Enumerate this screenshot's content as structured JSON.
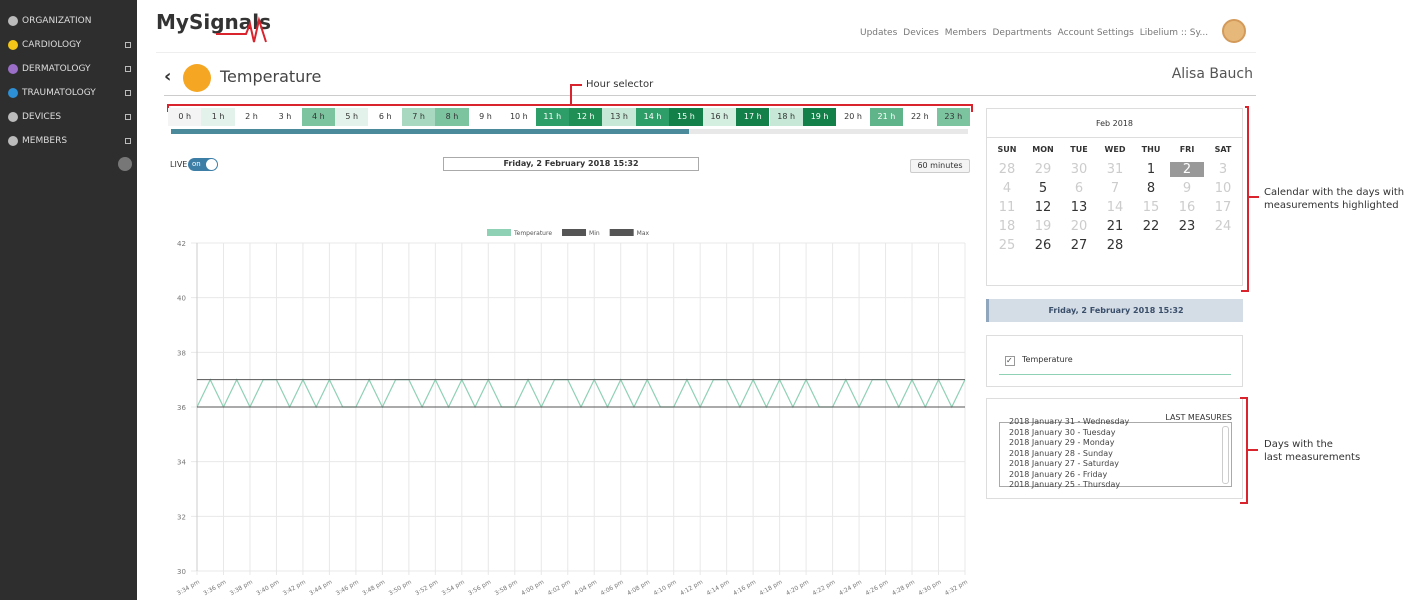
{
  "sidebar": {
    "items": [
      {
        "label": "ORGANIZATION",
        "icon": "#bbbbbb"
      },
      {
        "label": "CARDIOLOGY",
        "icon": "#f5c518"
      },
      {
        "label": "DERMATOLOGY",
        "icon": "#9b6fc8"
      },
      {
        "label": "TRAUMATOLOGY",
        "icon": "#2d8fd5"
      },
      {
        "label": "DEVICES",
        "icon": "#bbbbbb"
      },
      {
        "label": "MEMBERS",
        "icon": "#bbbbbb"
      }
    ]
  },
  "header": {
    "logo": "MySignals",
    "nav": [
      "Updates",
      "Devices",
      "Members",
      "Departments",
      "Account Settings",
      "Libelium :: Sy..."
    ]
  },
  "page": {
    "title": "Temperature",
    "user": "Alisa Bauch",
    "live": "LIVE",
    "toggle": "on",
    "date": "Friday, 2 February 2018 15:32",
    "range": "60 minutes"
  },
  "hours": [
    {
      "label": "0 h",
      "color": "#f4f4f4"
    },
    {
      "label": "1 h",
      "color": "#e3f2ea"
    },
    {
      "label": "2 h",
      "color": "#ffffff"
    },
    {
      "label": "3 h",
      "color": "#ffffff"
    },
    {
      "label": "4 h",
      "color": "#7cc4a0"
    },
    {
      "label": "5 h",
      "color": "#e3f2ea"
    },
    {
      "label": "6 h",
      "color": "#ffffff"
    },
    {
      "label": "7 h",
      "color": "#a8d8bf"
    },
    {
      "label": "8 h",
      "color": "#7cc4a0"
    },
    {
      "label": "9 h",
      "color": "#ffffff"
    },
    {
      "label": "10 h",
      "color": "#ffffff"
    },
    {
      "label": "11 h",
      "color": "#2e9e68"
    },
    {
      "label": "12 h",
      "color": "#1f8f55"
    },
    {
      "label": "13 h",
      "color": "#c7e8d6"
    },
    {
      "label": "14 h",
      "color": "#2e9e68"
    },
    {
      "label": "15 h",
      "color": "#137f49"
    },
    {
      "label": "16 h",
      "color": "#d4eee0"
    },
    {
      "label": "17 h",
      "color": "#137f49"
    },
    {
      "label": "18 h",
      "color": "#c7e8d6"
    },
    {
      "label": "19 h",
      "color": "#137f49"
    },
    {
      "label": "20 h",
      "color": "#ffffff"
    },
    {
      "label": "21 h",
      "color": "#5fb589"
    },
    {
      "label": "22 h",
      "color": "#ffffff"
    },
    {
      "label": "23 h",
      "color": "#7cc4a0"
    }
  ],
  "chart_data": {
    "type": "line",
    "legend": "top",
    "grid": true,
    "categories": [
      "3:34 pm",
      null,
      "3:36 pm",
      null,
      "3:38 pm",
      null,
      "3:40 pm",
      null,
      "3:42 pm",
      null,
      "3:44 pm",
      null,
      "3:46 pm",
      null,
      "3:48 pm",
      null,
      "3:50 pm",
      null,
      "3:52 pm",
      null,
      "3:54 pm",
      null,
      "3:56 pm",
      null,
      "3:58 pm",
      null,
      "4:00 pm",
      null,
      "4:02 pm",
      null,
      "4:04 pm",
      null,
      "4:06 pm",
      null,
      "4:08 pm",
      null,
      "4:10 pm",
      null,
      "4:12 pm",
      null,
      "4:14 pm",
      null,
      "4:16 pm",
      null,
      "4:18 pm",
      null,
      "4:20 pm",
      null,
      "4:22 pm",
      null,
      "4:24 pm",
      null,
      "4:26 pm",
      null,
      "4:28 pm",
      null,
      "4:30 pm",
      null,
      "4:32 pm"
    ],
    "ylim": [
      30,
      42
    ],
    "yticks": [
      30,
      32,
      34,
      36,
      38,
      40,
      42
    ],
    "series": [
      {
        "name": "Temperature",
        "color": "#8fd1b5",
        "values": [
          36,
          37,
          36,
          37,
          36,
          37,
          37,
          36,
          37,
          36,
          37,
          36,
          36,
          37,
          36,
          37,
          37,
          36,
          37,
          36,
          37,
          36,
          37,
          36,
          36,
          37,
          36,
          37,
          37,
          36,
          37,
          36,
          37,
          36,
          37,
          36,
          36,
          37,
          36,
          37,
          37,
          36,
          37,
          36,
          37,
          36,
          37,
          36,
          36,
          37,
          36,
          37,
          37,
          36,
          37,
          36,
          37,
          36,
          37
        ]
      },
      {
        "name": "Min",
        "color": "#555555",
        "values": [
          36,
          36,
          36,
          36,
          36,
          36,
          36,
          36,
          36,
          36,
          36,
          36,
          36,
          36,
          36,
          36,
          36,
          36,
          36,
          36,
          36,
          36,
          36,
          36,
          36,
          36,
          36,
          36,
          36,
          36,
          36,
          36,
          36,
          36,
          36,
          36,
          36,
          36,
          36,
          36,
          36,
          36,
          36,
          36,
          36,
          36,
          36,
          36,
          36,
          36,
          36,
          36,
          36,
          36,
          36,
          36,
          36,
          36,
          36
        ]
      },
      {
        "name": "Max",
        "color": "#555555",
        "values": [
          37,
          37,
          37,
          37,
          37,
          37,
          37,
          37,
          37,
          37,
          37,
          37,
          37,
          37,
          37,
          37,
          37,
          37,
          37,
          37,
          37,
          37,
          37,
          37,
          37,
          37,
          37,
          37,
          37,
          37,
          37,
          37,
          37,
          37,
          37,
          37,
          37,
          37,
          37,
          37,
          37,
          37,
          37,
          37,
          37,
          37,
          37,
          37,
          37,
          37,
          37,
          37,
          37,
          37,
          37,
          37,
          37,
          37,
          37
        ]
      }
    ]
  },
  "calendar": {
    "month": "Feb 2018",
    "weekdays": [
      "SUN",
      "MON",
      "TUE",
      "WED",
      "THU",
      "FRI",
      "SAT"
    ],
    "weeks": [
      [
        {
          "d": "28",
          "s": "muted"
        },
        {
          "d": "29",
          "s": "muted"
        },
        {
          "d": "30",
          "s": "muted"
        },
        {
          "d": "31",
          "s": "muted"
        },
        {
          "d": "1",
          "s": "data"
        },
        {
          "d": "2",
          "s": "selected"
        },
        {
          "d": "3",
          "s": "muted"
        }
      ],
      [
        {
          "d": "4",
          "s": "muted"
        },
        {
          "d": "5",
          "s": "data"
        },
        {
          "d": "6",
          "s": "muted"
        },
        {
          "d": "7",
          "s": "muted"
        },
        {
          "d": "8",
          "s": "data"
        },
        {
          "d": "9",
          "s": "muted"
        },
        {
          "d": "10",
          "s": "muted"
        }
      ],
      [
        {
          "d": "11",
          "s": "muted"
        },
        {
          "d": "12",
          "s": "data"
        },
        {
          "d": "13",
          "s": "data"
        },
        {
          "d": "14",
          "s": "muted"
        },
        {
          "d": "15",
          "s": "muted"
        },
        {
          "d": "16",
          "s": "muted"
        },
        {
          "d": "17",
          "s": "muted"
        }
      ],
      [
        {
          "d": "18",
          "s": "muted"
        },
        {
          "d": "19",
          "s": "muted"
        },
        {
          "d": "20",
          "s": "muted"
        },
        {
          "d": "21",
          "s": "data"
        },
        {
          "d": "22",
          "s": "data"
        },
        {
          "d": "23",
          "s": "data"
        },
        {
          "d": "24",
          "s": "muted"
        }
      ],
      [
        {
          "d": "25",
          "s": "muted"
        },
        {
          "d": "26",
          "s": "data"
        },
        {
          "d": "27",
          "s": "data"
        },
        {
          "d": "28",
          "s": "data"
        }
      ]
    ]
  },
  "panel": {
    "date": "Friday, 2 February 2018 15:32",
    "sensor": "Temperature",
    "last_title": "LAST MEASURES",
    "last": [
      "2018 January 31 - Wednesday",
      "2018 January 30 - Tuesday",
      "2018 January 29 - Monday",
      "2018 January 28 - Sunday",
      "2018 January 27 - Saturday",
      "2018 January 26 - Friday",
      "2018 January 25 - Thursday"
    ]
  },
  "annotations": {
    "hours": "Hour selector",
    "calendar": [
      "Calendar with the days with",
      "measurements highlighted"
    ],
    "last": [
      "Days with the",
      "last measurements"
    ]
  }
}
